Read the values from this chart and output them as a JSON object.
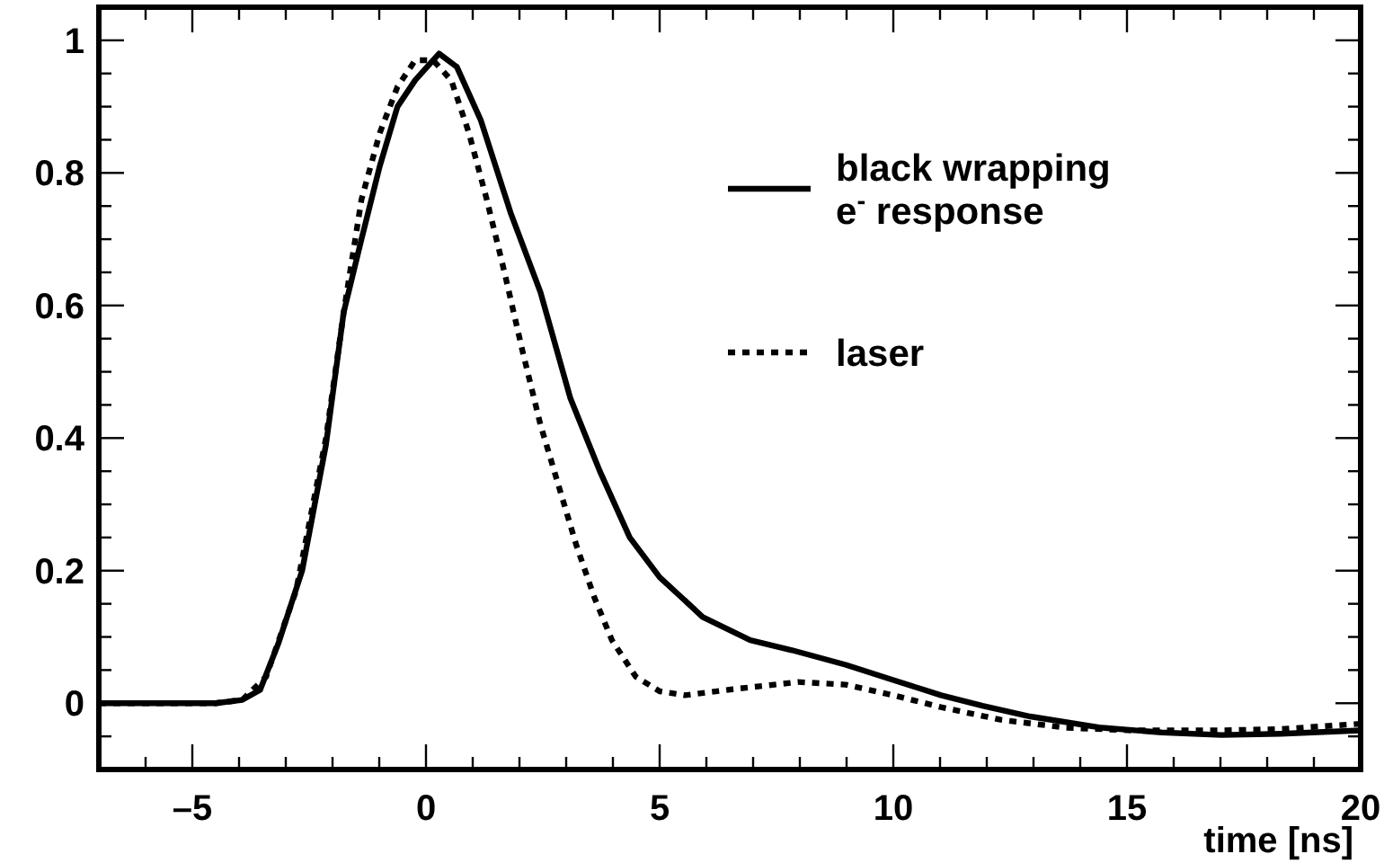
{
  "chart_data": {
    "type": "line",
    "xlabel": "time [ns]",
    "xlim": [
      -7,
      20
    ],
    "ylim": [
      -0.1,
      1.05
    ],
    "xticks": [
      {
        "value": -7,
        "label": null
      },
      {
        "value": -6,
        "label": null
      },
      {
        "value": -5,
        "label": "–5"
      },
      {
        "value": -4,
        "label": null
      },
      {
        "value": -3,
        "label": null
      },
      {
        "value": -2,
        "label": null
      },
      {
        "value": -1,
        "label": null
      },
      0,
      {
        "value": 1,
        "label": null
      },
      {
        "value": 2,
        "label": null
      },
      {
        "value": 3,
        "label": null
      },
      {
        "value": 4,
        "label": null
      },
      5,
      {
        "value": 6,
        "label": null
      },
      {
        "value": 7,
        "label": null
      },
      {
        "value": 8,
        "label": null
      },
      {
        "value": 9,
        "label": null
      },
      10,
      {
        "value": 11,
        "label": null
      },
      {
        "value": 12,
        "label": null
      },
      {
        "value": 13,
        "label": null
      },
      {
        "value": 14,
        "label": null
      },
      15,
      {
        "value": 16,
        "label": null
      },
      {
        "value": 17,
        "label": null
      },
      {
        "value": 18,
        "label": null
      },
      {
        "value": 19,
        "label": null
      },
      20
    ],
    "yticks": [
      {
        "value": -0.05,
        "label": null
      },
      0,
      {
        "value": 0.05,
        "label": null
      },
      {
        "value": 0.1,
        "label": null
      },
      {
        "value": 0.15,
        "label": null
      },
      0.2,
      {
        "value": 0.25,
        "label": null
      },
      {
        "value": 0.3,
        "label": null
      },
      {
        "value": 0.35,
        "label": null
      },
      0.4,
      {
        "value": 0.45,
        "label": null
      },
      {
        "value": 0.5,
        "label": null
      },
      {
        "value": 0.55,
        "label": null
      },
      0.6,
      {
        "value": 0.65,
        "label": null
      },
      {
        "value": 0.7,
        "label": null
      },
      {
        "value": 0.75,
        "label": null
      },
      0.8,
      {
        "value": 0.85,
        "label": null
      },
      {
        "value": 0.9,
        "label": null
      },
      {
        "value": 0.95,
        "label": null
      },
      1
    ],
    "grid": false,
    "legend": "top right",
    "marker": "none",
    "series": [
      {
        "name": "black wrapping e$^{-}$ response",
        "color": "#000000",
        "line_style": "solid",
        "x": [
          -7,
          -4.5,
          -3.93,
          -3.55,
          -3.16,
          -2.65,
          -2.14,
          -1.76,
          -1.38,
          -0.99,
          -0.61,
          -0.23,
          0.28,
          0.66,
          1.17,
          1.81,
          2.45,
          3.09,
          3.72,
          4.36,
          5.0,
          5.54,
          5.92,
          6.94,
          7.83,
          8.98,
          10,
          11.02,
          11.91,
          12.93,
          14.46,
          15.74,
          17.02,
          18.29,
          20
        ],
        "values": [
          0,
          0,
          0.005,
          0.02,
          0.09,
          0.2,
          0.39,
          0.59,
          0.7,
          0.81,
          0.9,
          0.94,
          0.98,
          0.96,
          0.88,
          0.74,
          0.62,
          0.46,
          0.35,
          0.25,
          0.19,
          0.155,
          0.13,
          0.095,
          0.08,
          0.058,
          0.035,
          0.012,
          -0.004,
          -0.02,
          -0.037,
          -0.044,
          -0.048,
          -0.046,
          -0.041
        ]
      },
      {
        "name": "laser",
        "color": "#000000",
        "line_style": "dotted",
        "x": [
          -7,
          -4.5,
          -3.93,
          -3.42,
          -2.78,
          -2.14,
          -1.76,
          -1.38,
          -0.99,
          -0.61,
          -0.23,
          0.15,
          0.54,
          0.92,
          1.3,
          1.68,
          2.07,
          2.45,
          2.83,
          3.21,
          3.6,
          3.98,
          4.49,
          5.0,
          5.54,
          6.56,
          7.96,
          8.98,
          10,
          11.02,
          12.3,
          13.7,
          15.1,
          17.0,
          18.29,
          20
        ],
        "values": [
          0,
          0,
          0.005,
          0.04,
          0.17,
          0.4,
          0.59,
          0.76,
          0.86,
          0.93,
          0.97,
          0.97,
          0.94,
          0.86,
          0.76,
          0.65,
          0.53,
          0.42,
          0.33,
          0.24,
          0.16,
          0.095,
          0.04,
          0.018,
          0.012,
          0.021,
          0.032,
          0.028,
          0.012,
          -0.006,
          -0.025,
          -0.037,
          -0.041,
          -0.041,
          -0.039,
          -0.031
        ]
      }
    ]
  }
}
